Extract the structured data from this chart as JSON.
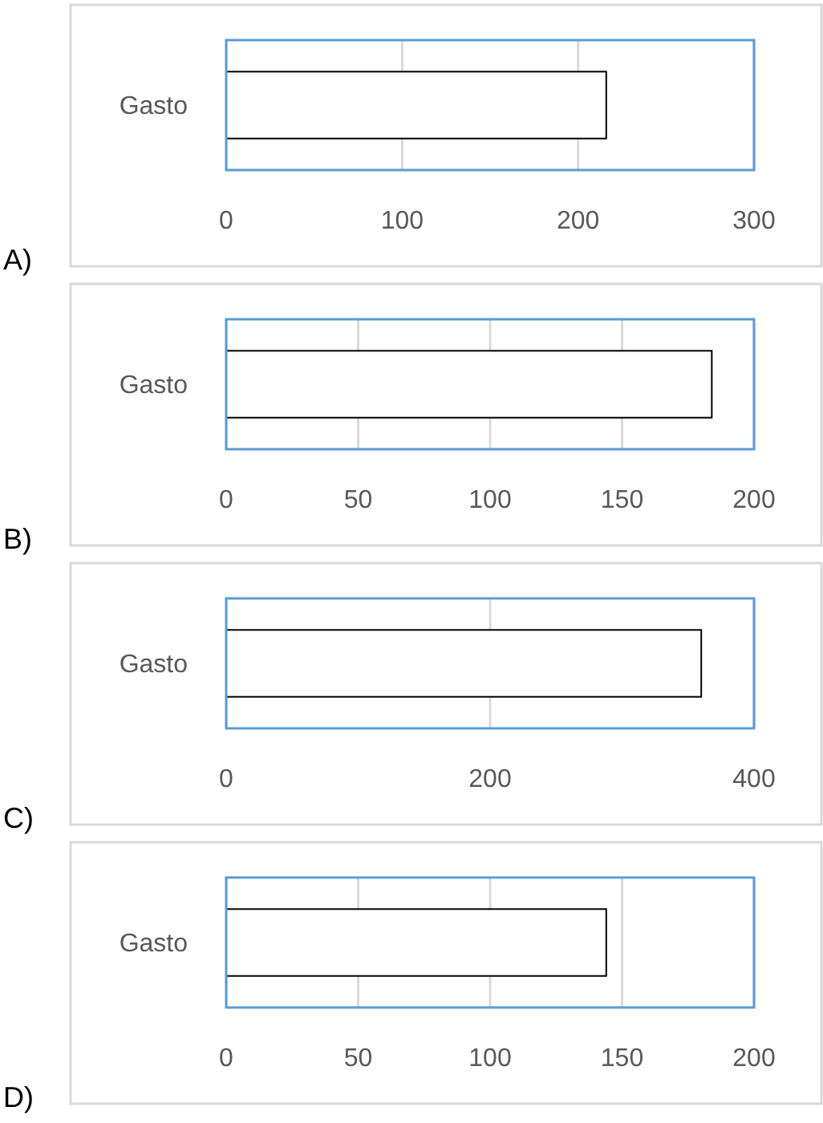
{
  "chart_data": [
    {
      "type": "bar",
      "orientation": "horizontal",
      "title": "A)",
      "categories": [
        "Gasto"
      ],
      "values": [
        216
      ],
      "color": "#ffffff",
      "xlim": [
        0,
        300
      ],
      "xticks": [
        0,
        100,
        200,
        300
      ],
      "grid": "x"
    },
    {
      "type": "bar",
      "orientation": "horizontal",
      "title": "B)",
      "categories": [
        "Gasto"
      ],
      "values": [
        184
      ],
      "color": "#ffffff",
      "xlim": [
        0,
        200
      ],
      "xticks": [
        0,
        50,
        100,
        150,
        200
      ],
      "grid": "x"
    },
    {
      "type": "bar",
      "orientation": "horizontal",
      "title": "C)",
      "categories": [
        "Gasto"
      ],
      "values": [
        360
      ],
      "color": "#ffffff",
      "xlim": [
        0,
        400
      ],
      "xticks": [
        0,
        200,
        400
      ],
      "grid": "x"
    },
    {
      "type": "bar",
      "orientation": "horizontal",
      "title": "D)",
      "categories": [
        "Gasto"
      ],
      "values": [
        144
      ],
      "color": "#ffffff",
      "xlim": [
        0,
        200
      ],
      "xticks": [
        0,
        50,
        100,
        150,
        200
      ],
      "grid": "x"
    }
  ]
}
